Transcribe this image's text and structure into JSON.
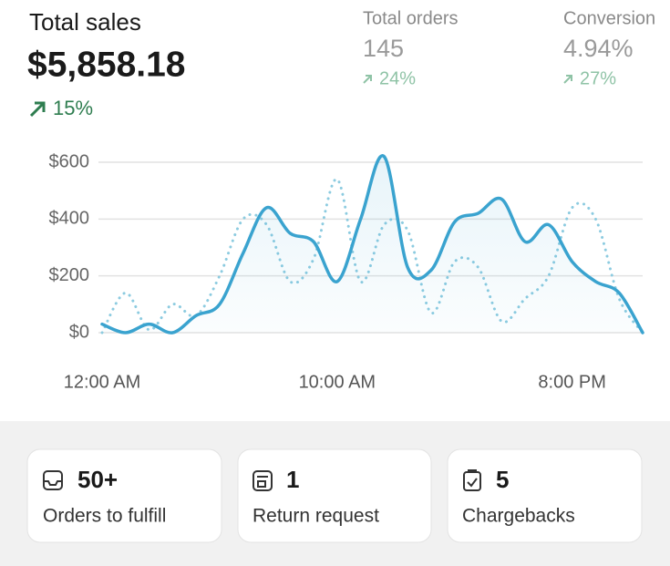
{
  "header": {
    "stats": [
      {
        "title": "Total sales",
        "value": "$5,858.18",
        "change": "15%"
      },
      {
        "title": "Total orders",
        "value": "145",
        "change": "24%"
      },
      {
        "title": "Conversion",
        "value": "4.94%",
        "change": "27%"
      }
    ]
  },
  "chart_data": {
    "type": "line",
    "categories": [
      "12:00 AM",
      null,
      null,
      null,
      null,
      null,
      null,
      null,
      null,
      null,
      "10:00 AM",
      null,
      null,
      null,
      null,
      null,
      null,
      null,
      null,
      null,
      "8:00 PM",
      null,
      null,
      null
    ],
    "series": [
      {
        "color": "#3aa3cf",
        "values": [
          30,
          0,
          30,
          0,
          60,
          100,
          280,
          440,
          350,
          320,
          180,
          400,
          620,
          230,
          220,
          390,
          420,
          470,
          320,
          380,
          250,
          180,
          140,
          0
        ]
      },
      {
        "color": "#8ccbe0",
        "dashed": true,
        "values": [
          0,
          140,
          10,
          100,
          60,
          200,
          400,
          380,
          180,
          260,
          540,
          180,
          380,
          360,
          70,
          250,
          230,
          40,
          120,
          200,
          440,
          400,
          120,
          0
        ]
      }
    ],
    "ylim": [
      0,
      600
    ],
    "yticks": [
      {
        "value": 0,
        "label": "$0"
      },
      {
        "value": 200,
        "label": "$200"
      },
      {
        "value": 400,
        "label": "$400"
      },
      {
        "value": 600,
        "label": "$600"
      }
    ],
    "grid": true
  },
  "cards": [
    {
      "count": "50+",
      "label": "Orders to fulfill"
    },
    {
      "count": 1,
      "label": "Return request"
    },
    {
      "count": 5,
      "label": "Chargebacks"
    }
  ]
}
